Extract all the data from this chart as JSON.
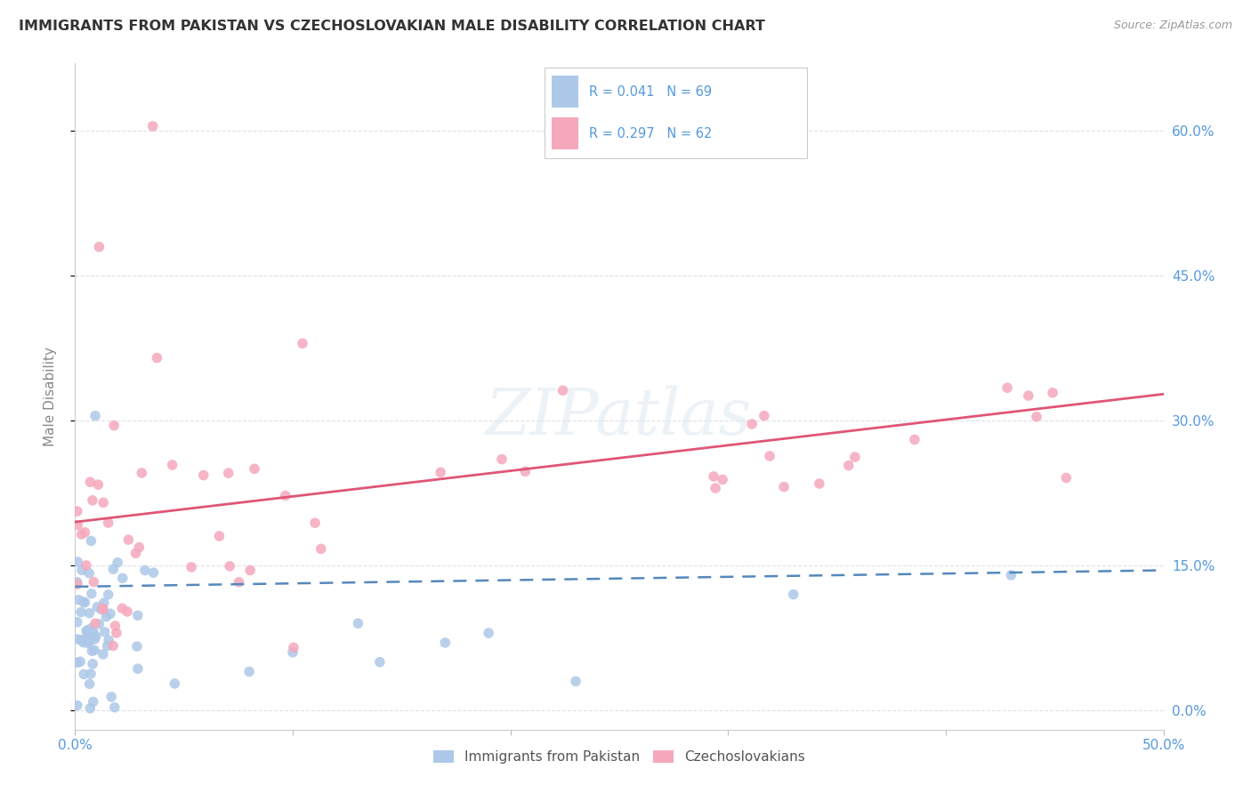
{
  "title": "IMMIGRANTS FROM PAKISTAN VS CZECHOSLOVAKIAN MALE DISABILITY CORRELATION CHART",
  "source": "Source: ZipAtlas.com",
  "ylabel": "Male Disability",
  "ytick_labels": [
    "0.0%",
    "15.0%",
    "30.0%",
    "45.0%",
    "60.0%"
  ],
  "ytick_vals": [
    0.0,
    0.15,
    0.3,
    0.45,
    0.6
  ],
  "xlim": [
    0.0,
    0.5
  ],
  "ylim": [
    -0.02,
    0.67
  ],
  "pakistan_R": 0.041,
  "pakistan_N": 69,
  "czech_R": 0.297,
  "czech_N": 62,
  "pakistan_color": "#adc8e8",
  "czech_color": "#f5a8bc",
  "pakistan_line_color": "#5588bb",
  "czech_line_color": "#e05575",
  "pakistan_label": "Immigrants from Pakistan",
  "czech_label": "Czechoslovakians",
  "watermark_text": "ZIPatlas",
  "background_color": "#ffffff",
  "grid_color": "#e0e0e8",
  "tick_label_color": "#5599dd",
  "ylabel_color": "#888888",
  "title_color": "#333333",
  "source_color": "#999999"
}
